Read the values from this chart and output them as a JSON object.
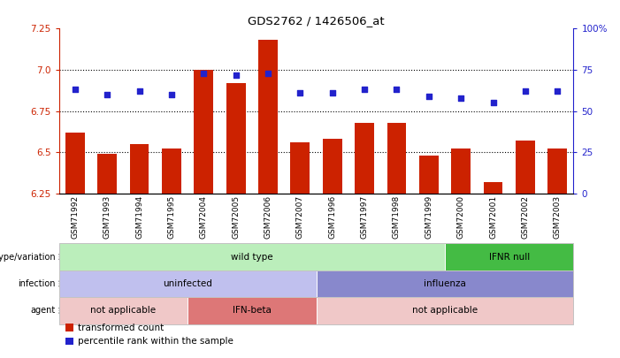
{
  "title": "GDS2762 / 1426506_at",
  "samples": [
    "GSM71992",
    "GSM71993",
    "GSM71994",
    "GSM71995",
    "GSM72004",
    "GSM72005",
    "GSM72006",
    "GSM72007",
    "GSM71996",
    "GSM71997",
    "GSM71998",
    "GSM71999",
    "GSM72000",
    "GSM72001",
    "GSM72002",
    "GSM72003"
  ],
  "transformed_count": [
    6.62,
    6.49,
    6.55,
    6.52,
    7.0,
    6.92,
    7.18,
    6.56,
    6.58,
    6.68,
    6.68,
    6.48,
    6.52,
    6.32,
    6.57,
    6.52
  ],
  "percentile_rank": [
    63,
    60,
    62,
    60,
    73,
    72,
    73,
    61,
    61,
    63,
    63,
    59,
    58,
    55,
    62,
    62
  ],
  "ylim_left": [
    6.25,
    7.25
  ],
  "ylim_right": [
    0,
    100
  ],
  "yticks_left": [
    6.25,
    6.5,
    6.75,
    7.0,
    7.25
  ],
  "yticks_right": [
    0,
    25,
    50,
    75,
    100
  ],
  "bar_color": "#cc2200",
  "dot_color": "#2222cc",
  "annotation_rows": [
    {
      "label": "genotype/variation",
      "segments": [
        {
          "text": "wild type",
          "start": 0,
          "end": 12,
          "color": "#bbeebb"
        },
        {
          "text": "IFNR null",
          "start": 12,
          "end": 16,
          "color": "#44bb44"
        }
      ]
    },
    {
      "label": "infection",
      "segments": [
        {
          "text": "uninfected",
          "start": 0,
          "end": 8,
          "color": "#c0c0ee"
        },
        {
          "text": "influenza",
          "start": 8,
          "end": 16,
          "color": "#8888cc"
        }
      ]
    },
    {
      "label": "agent",
      "segments": [
        {
          "text": "not applicable",
          "start": 0,
          "end": 4,
          "color": "#f0c8c8"
        },
        {
          "text": "IFN-beta",
          "start": 4,
          "end": 8,
          "color": "#dd7777"
        },
        {
          "text": "not applicable",
          "start": 8,
          "end": 16,
          "color": "#f0c8c8"
        }
      ]
    }
  ],
  "legend_items": [
    {
      "color": "#cc2200",
      "label": "transformed count"
    },
    {
      "color": "#2222cc",
      "label": "percentile rank within the sample"
    }
  ]
}
